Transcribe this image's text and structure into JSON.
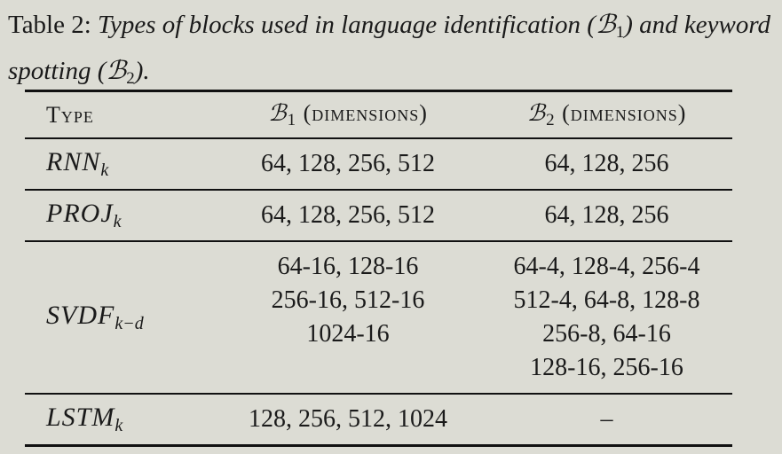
{
  "caption": {
    "lead": "Table 2: ",
    "text_part1": "Types of blocks used in language identification (",
    "b1_symbol": "ℬ",
    "b1_sub": "1",
    "text_part2": ") and keyword spotting (",
    "b2_symbol": "ℬ",
    "b2_sub": "2",
    "text_part3": ")."
  },
  "table": {
    "headers": {
      "type": "Type",
      "b1_symbol": "ℬ",
      "b1_sub": "1",
      "b1_label": " (dimensions)",
      "b2_symbol": "ℬ",
      "b2_sub": "2",
      "b2_label": " (dimensions)"
    },
    "rows": [
      {
        "type_base": "RNN",
        "type_sub": "k",
        "b1": [
          "64, 128, 256, 512"
        ],
        "b2": [
          "64, 128, 256"
        ]
      },
      {
        "type_base": "PROJ",
        "type_sub": "k",
        "b1": [
          "64, 128, 256, 512"
        ],
        "b2": [
          "64, 128, 256"
        ]
      },
      {
        "type_base": "SVDF",
        "type_sub": "k−d",
        "b1": [
          "64-16, 128-16",
          "256-16, 512-16",
          "1024-16"
        ],
        "b2": [
          "64-4, 128-4, 256-4",
          "512-4, 64-8, 128-8",
          "256-8, 64-16",
          "128-16, 256-16"
        ]
      },
      {
        "type_base": "LSTM",
        "type_sub": "k",
        "b1": [
          "128, 256, 512, 1024"
        ],
        "b2": [
          "–"
        ]
      }
    ]
  }
}
